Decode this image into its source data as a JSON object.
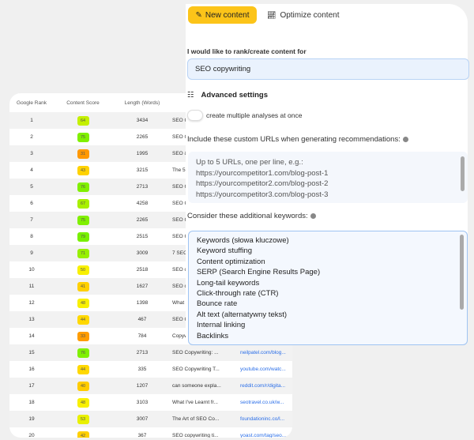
{
  "table": {
    "headers": [
      "Google Rank",
      "Content Score",
      "Length (Words)",
      ""
    ],
    "rows": [
      {
        "rank": "1",
        "score": "64",
        "color": "#c4f000",
        "length": "3434",
        "title": "SEO C",
        "url": ""
      },
      {
        "rank": "2",
        "score": "75",
        "color": "#80f000",
        "length": "2265",
        "title": "SEO C",
        "url": ""
      },
      {
        "rank": "3",
        "score": "31",
        "color": "#ff9800",
        "length": "1995",
        "title": "SEO &",
        "url": ""
      },
      {
        "rank": "4",
        "score": "43",
        "color": "#ffd200",
        "length": "3215",
        "title": "The 5",
        "url": ""
      },
      {
        "rank": "5",
        "score": "76",
        "color": "#80f000",
        "length": "2713",
        "title": "SEO C",
        "url": ""
      },
      {
        "rank": "6",
        "score": "67",
        "color": "#a8f000",
        "length": "4258",
        "title": "SEO C",
        "url": ""
      },
      {
        "rank": "7",
        "score": "75",
        "color": "#80f000",
        "length": "2265",
        "title": "SEO C",
        "url": ""
      },
      {
        "rank": "8",
        "score": "79",
        "color": "#78f000",
        "length": "2515",
        "title": "SEO C",
        "url": ""
      },
      {
        "rank": "9",
        "score": "71",
        "color": "#98f000",
        "length": "3009",
        "title": "7 SEO",
        "url": ""
      },
      {
        "rank": "10",
        "score": "50",
        "color": "#f8f000",
        "length": "2518",
        "title": "SEO c",
        "url": ""
      },
      {
        "rank": "11",
        "score": "41",
        "color": "#ffd000",
        "length": "1627",
        "title": "SEO c",
        "url": ""
      },
      {
        "rank": "12",
        "score": "48",
        "color": "#f8f000",
        "length": "1398",
        "title": "What",
        "url": ""
      },
      {
        "rank": "13",
        "score": "44",
        "color": "#ffd800",
        "length": "467",
        "title": "SEO C",
        "url": ""
      },
      {
        "rank": "14",
        "score": "33",
        "color": "#ff9c00",
        "length": "784",
        "title": "Copyw",
        "url": ""
      },
      {
        "rank": "15",
        "score": "76",
        "color": "#80f000",
        "length": "2713",
        "title": "SEO Copywriting: ...",
        "url": "neilpatel.com/blog..."
      },
      {
        "rank": "16",
        "score": "44",
        "color": "#ffd800",
        "length": "335",
        "title": "SEO Copywriting T...",
        "url": "youtube.com/watc..."
      },
      {
        "rank": "17",
        "score": "40",
        "color": "#ffcc00",
        "length": "1207",
        "title": "can someone expla...",
        "url": "reddit.com/r/digita..."
      },
      {
        "rank": "18",
        "score": "48",
        "color": "#f8f000",
        "length": "3103",
        "title": "What I've Learnt fr...",
        "url": "seotravel.co.uk/w..."
      },
      {
        "rank": "19",
        "score": "53",
        "color": "#e8f000",
        "length": "3007",
        "title": "The Art of SEO Co...",
        "url": "foundationinc.co/l..."
      },
      {
        "rank": "20",
        "score": "42",
        "color": "#ffd000",
        "length": "367",
        "title": "SEO copywriting ti...",
        "url": "yoast.com/tag/seo..."
      }
    ]
  },
  "panel": {
    "tabs": {
      "new": "New content",
      "optimize": "Optimize content"
    },
    "rank_label": "I would like to rank/create content for",
    "keyword_value": "SEO copywriting",
    "advanced": "Advanced settings",
    "multiple_toggle": "create multiple analyses at once",
    "urls_label": "Include these custom URLs when generating recommendations:",
    "urls_placeholder": [
      "Up to 5 URLs, one per line, e.g.:",
      "https://yourcompetitor1.com/blog-post-1",
      "https://yourcompetitor2.com/blog-post-2",
      "https://yourcompetitor3.com/blog-post-3"
    ],
    "keywords_label": "Consider these additional keywords:",
    "keywords": [
      "Keywords (słowa kluczowe)",
      "Keyword stuffing",
      "Content optimization",
      "SERP (Search Engine Results Page)",
      "Long-tail keywords",
      "Click-through rate (CTR)",
      "Bounce rate",
      "Alt text (alternatywny tekst)",
      "Internal linking",
      "Backlinks"
    ]
  }
}
